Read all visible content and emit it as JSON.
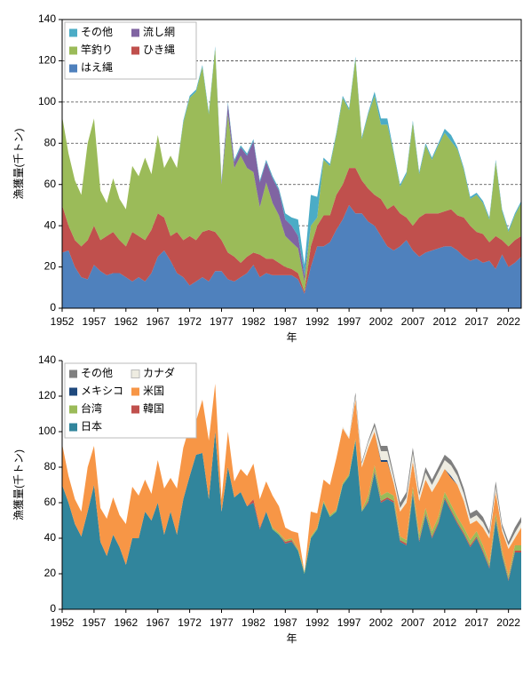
{
  "chart_data": [
    {
      "type": "area",
      "stacked": true,
      "xlabel": "年",
      "ylabel": "漁獲量(千トン)",
      "x": [
        1952,
        1953,
        1954,
        1955,
        1956,
        1957,
        1958,
        1959,
        1960,
        1961,
        1962,
        1963,
        1964,
        1965,
        1966,
        1967,
        1968,
        1969,
        1970,
        1971,
        1972,
        1973,
        1974,
        1975,
        1976,
        1977,
        1978,
        1979,
        1980,
        1981,
        1982,
        1983,
        1984,
        1985,
        1986,
        1987,
        1988,
        1989,
        1990,
        1991,
        1992,
        1993,
        1994,
        1995,
        1996,
        1997,
        1998,
        1999,
        2000,
        2001,
        2002,
        2003,
        2004,
        2005,
        2006,
        2007,
        2008,
        2009,
        2010,
        2011,
        2012,
        2013,
        2014,
        2015,
        2016,
        2017,
        2018,
        2019,
        2020,
        2021,
        2022,
        2023,
        2024
      ],
      "xlim": [
        1952,
        2024
      ],
      "xticks": [
        1952,
        1957,
        1962,
        1967,
        1972,
        1977,
        1982,
        1987,
        1992,
        1997,
        2002,
        2007,
        2012,
        2017,
        2022
      ],
      "ylim": [
        0,
        140
      ],
      "yticks": [
        0,
        20,
        40,
        60,
        80,
        100,
        120,
        140
      ],
      "grid": true,
      "legend": "upper-left",
      "series": [
        {
          "name": "はえ縄",
          "color": "#4f81bd",
          "values": [
            27,
            28,
            20,
            15,
            14,
            21,
            18,
            16,
            17,
            17,
            15,
            13,
            15,
            13,
            17,
            25,
            28,
            23,
            17,
            15,
            11,
            13,
            15,
            13,
            18,
            18,
            14,
            13,
            15,
            17,
            21,
            15,
            17,
            16,
            16,
            16,
            16,
            14,
            7,
            20,
            30,
            30,
            32,
            38,
            43,
            50,
            46,
            46,
            42,
            40,
            35,
            30,
            28,
            30,
            33,
            28,
            25,
            27,
            28,
            29,
            30,
            30,
            28,
            25,
            23,
            24,
            22,
            23,
            19,
            26,
            20,
            22,
            25
          ]
        },
        {
          "name": "ひき縄",
          "color": "#c0504d",
          "values": [
            23,
            12,
            13,
            15,
            19,
            19,
            15,
            19,
            20,
            16,
            15,
            24,
            20,
            20,
            21,
            21,
            16,
            12,
            20,
            18,
            24,
            20,
            22,
            25,
            19,
            15,
            13,
            12,
            7,
            8,
            6,
            11,
            7,
            8,
            6,
            4,
            3,
            3,
            1,
            10,
            10,
            15,
            13,
            17,
            17,
            18,
            22,
            16,
            16,
            15,
            18,
            18,
            22,
            16,
            11,
            12,
            19,
            19,
            18,
            17,
            17,
            18,
            17,
            19,
            17,
            13,
            14,
            9,
            16,
            7,
            10,
            11,
            10
          ]
        },
        {
          "name": "竿釣り",
          "color": "#9bbb59",
          "values": [
            43,
            35,
            29,
            25,
            47,
            52,
            24,
            16,
            26,
            20,
            18,
            32,
            29,
            40,
            27,
            38,
            24,
            39,
            31,
            57,
            67,
            72,
            80,
            56,
            89,
            27,
            67,
            43,
            52,
            43,
            39,
            23,
            37,
            27,
            23,
            15,
            13,
            12,
            5,
            10,
            4,
            27,
            24,
            29,
            42,
            28,
            53,
            20,
            36,
            48,
            36,
            41,
            25,
            13,
            21,
            50,
            21,
            33,
            26,
            33,
            38,
            33,
            32,
            23,
            13,
            18,
            15,
            11,
            36,
            14,
            7,
            12,
            16
          ]
        },
        {
          "name": "流し網",
          "color": "#8064a2",
          "values": [
            0,
            0,
            0,
            0,
            0,
            0,
            0,
            0,
            0,
            0,
            0,
            0,
            0,
            0,
            0,
            0,
            0,
            0,
            0,
            0,
            0,
            0,
            0,
            0,
            0,
            1,
            5,
            3,
            4,
            6,
            15,
            12,
            10,
            12,
            12,
            8,
            8,
            6,
            3,
            0,
            0,
            0,
            0,
            0,
            0,
            0,
            0,
            0,
            0,
            0,
            0,
            0,
            0,
            0,
            0,
            0,
            0,
            0,
            0,
            0,
            0,
            0,
            0,
            0,
            0,
            0,
            0,
            0,
            0,
            0,
            0,
            0,
            0
          ]
        },
        {
          "name": "その他",
          "color": "#4bacc6",
          "values": [
            0,
            0,
            0,
            0,
            0,
            0,
            0,
            0,
            0,
            0,
            0,
            0,
            0,
            0,
            0,
            0,
            0,
            0,
            0,
            1,
            1,
            1,
            1,
            1,
            1,
            1,
            1,
            1,
            1,
            1,
            1,
            1,
            1,
            1,
            1,
            3,
            4,
            8,
            5,
            15,
            10,
            1,
            1,
            1,
            1,
            1,
            1,
            1,
            1,
            2,
            3,
            3,
            1,
            1,
            1,
            1,
            1,
            1,
            1,
            1,
            2,
            3,
            1,
            1,
            1,
            1,
            1,
            1,
            1,
            1,
            1,
            1,
            1
          ]
        }
      ]
    },
    {
      "type": "area",
      "stacked": true,
      "xlabel": "年",
      "ylabel": "漁獲量(千トン)",
      "x": [
        1952,
        1953,
        1954,
        1955,
        1956,
        1957,
        1958,
        1959,
        1960,
        1961,
        1962,
        1963,
        1964,
        1965,
        1966,
        1967,
        1968,
        1969,
        1970,
        1971,
        1972,
        1973,
        1974,
        1975,
        1976,
        1977,
        1978,
        1979,
        1980,
        1981,
        1982,
        1983,
        1984,
        1985,
        1986,
        1987,
        1988,
        1989,
        1990,
        1991,
        1992,
        1993,
        1994,
        1995,
        1996,
        1997,
        1998,
        1999,
        2000,
        2001,
        2002,
        2003,
        2004,
        2005,
        2006,
        2007,
        2008,
        2009,
        2010,
        2011,
        2012,
        2013,
        2014,
        2015,
        2016,
        2017,
        2018,
        2019,
        2020,
        2021,
        2022,
        2023,
        2024
      ],
      "xlim": [
        1952,
        2024
      ],
      "xticks": [
        1952,
        1957,
        1962,
        1967,
        1972,
        1977,
        1982,
        1987,
        1992,
        1997,
        2002,
        2007,
        2012,
        2017,
        2022
      ],
      "ylim": [
        0,
        140
      ],
      "yticks": [
        0,
        20,
        40,
        60,
        80,
        100,
        120,
        140
      ],
      "grid": false,
      "legend": "upper-left",
      "series": [
        {
          "name": "日本",
          "color": "#31859c",
          "values": [
            70,
            60,
            48,
            41,
            55,
            70,
            38,
            30,
            42,
            35,
            25,
            40,
            40,
            55,
            50,
            60,
            42,
            55,
            42,
            62,
            75,
            87,
            88,
            62,
            100,
            55,
            80,
            63,
            66,
            58,
            60,
            45,
            55,
            45,
            42,
            37,
            38,
            33,
            20,
            40,
            45,
            60,
            52,
            55,
            70,
            75,
            95,
            55,
            60,
            77,
            60,
            62,
            60,
            38,
            36,
            65,
            38,
            53,
            40,
            48,
            62,
            55,
            48,
            42,
            35,
            40,
            32,
            23,
            50,
            30,
            16,
            32,
            32
          ]
        },
        {
          "name": "韓国",
          "color": "#c0504d",
          "values": [
            0,
            0,
            0,
            0,
            0,
            0,
            0,
            0,
            0,
            0,
            0,
            0,
            0,
            0,
            0,
            0,
            0,
            0,
            0,
            0,
            0,
            0,
            0,
            0,
            0,
            0,
            0,
            0,
            0,
            0,
            2,
            1,
            0,
            0,
            0,
            1,
            1,
            0,
            0,
            0,
            0,
            0,
            0,
            0,
            0,
            0,
            0,
            0,
            1,
            1,
            1,
            1,
            1,
            1,
            1,
            1,
            1,
            1,
            1,
            1,
            1,
            1,
            1,
            1,
            1,
            1,
            1,
            1,
            1,
            1,
            1,
            1,
            1
          ]
        },
        {
          "name": "台湾",
          "color": "#9bbb59",
          "values": [
            0,
            0,
            0,
            0,
            0,
            0,
            0,
            0,
            0,
            0,
            0,
            0,
            0,
            0,
            0,
            0,
            0,
            0,
            0,
            0,
            0,
            0,
            0,
            0,
            0,
            0,
            0,
            0,
            0,
            0,
            0,
            0,
            0,
            1,
            1,
            1,
            1,
            1,
            1,
            1,
            1,
            1,
            1,
            1,
            1,
            1,
            1,
            1,
            3,
            3,
            3,
            3,
            3,
            2,
            2,
            3,
            3,
            3,
            3,
            3,
            3,
            3,
            3,
            3,
            3,
            3,
            3,
            2,
            3,
            2,
            2,
            3,
            3
          ]
        },
        {
          "name": "米国",
          "color": "#f79646",
          "values": [
            23,
            15,
            14,
            14,
            25,
            22,
            19,
            21,
            21,
            18,
            23,
            29,
            24,
            18,
            15,
            24,
            26,
            19,
            26,
            29,
            28,
            19,
            30,
            33,
            27,
            7,
            20,
            9,
            13,
            17,
            20,
            16,
            17,
            18,
            15,
            7,
            4,
            9,
            0,
            14,
            8,
            12,
            17,
            29,
            31,
            20,
            22,
            24,
            27,
            19,
            19,
            17,
            7,
            14,
            21,
            14,
            19,
            16,
            22,
            20,
            13,
            15,
            18,
            15,
            9,
            6,
            10,
            14,
            12,
            11,
            15,
            4,
            10
          ]
        },
        {
          "name": "メキシコ",
          "color": "#1f497d",
          "values": [
            0,
            0,
            0,
            0,
            0,
            0,
            0,
            0,
            0,
            0,
            0,
            0,
            0,
            0,
            0,
            0,
            0,
            0,
            0,
            0,
            0,
            0,
            0,
            0,
            0,
            0,
            0,
            0,
            0,
            0,
            0,
            0,
            0,
            0,
            0,
            0,
            0,
            0,
            0,
            0,
            0,
            0,
            0,
            0,
            0,
            0,
            0,
            0,
            0,
            0,
            1,
            1,
            0,
            0,
            0,
            0,
            0,
            0,
            0,
            0,
            0,
            1,
            0,
            0,
            0,
            0,
            0,
            0,
            0,
            0,
            0,
            0,
            0
          ]
        },
        {
          "name": "カナダ",
          "color": "#eeece1",
          "values": [
            0,
            0,
            0,
            0,
            0,
            0,
            0,
            0,
            0,
            0,
            0,
            0,
            0,
            0,
            0,
            0,
            0,
            0,
            0,
            0,
            0,
            0,
            0,
            0,
            0,
            0,
            0,
            0,
            0,
            0,
            0,
            0,
            0,
            0,
            0,
            0,
            0,
            0,
            0,
            0,
            0,
            0,
            0,
            0,
            1,
            1,
            2,
            2,
            3,
            3,
            5,
            5,
            3,
            2,
            3,
            5,
            3,
            4,
            4,
            5,
            5,
            6,
            5,
            4,
            3,
            3,
            3,
            2,
            3,
            2,
            2,
            3,
            3
          ]
        },
        {
          "name": "その他",
          "color": "#7f7f7f",
          "values": [
            0,
            0,
            0,
            0,
            0,
            0,
            0,
            0,
            0,
            0,
            0,
            0,
            0,
            0,
            0,
            0,
            0,
            0,
            0,
            0,
            0,
            0,
            0,
            0,
            0,
            0,
            0,
            0,
            0,
            0,
            0,
            0,
            0,
            0,
            0,
            0,
            0,
            0,
            0,
            0,
            0,
            0,
            0,
            0,
            0,
            0,
            2,
            1,
            1,
            2,
            3,
            3,
            2,
            3,
            3,
            3,
            2,
            3,
            3,
            3,
            3,
            3,
            3,
            3,
            3,
            3,
            3,
            2,
            3,
            2,
            2,
            3,
            3
          ]
        }
      ]
    }
  ]
}
